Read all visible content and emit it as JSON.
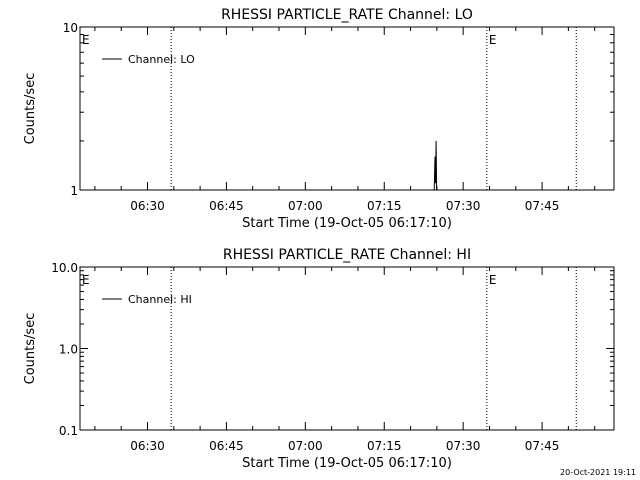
{
  "chart_data": [
    {
      "type": "line",
      "title": "RHESSI PARTICLE_RATE Channel: LO",
      "xlabel": "Start Time (19-Oct-05 06:17:10)",
      "ylabel": "Counts/sec",
      "y_scale": "log",
      "ylim": [
        1,
        10
      ],
      "y_ticks": [
        {
          "v": 1,
          "label": "1"
        },
        {
          "v": 10,
          "label": "10"
        }
      ],
      "x_range": [
        "06:17:10",
        "07:58:40"
      ],
      "x_ticks": [
        "06:30",
        "06:45",
        "07:00",
        "07:15",
        "07:30",
        "07:45"
      ],
      "x_tick_minutes": [
        30,
        45,
        60,
        75,
        90,
        105
      ],
      "x_range_minutes": [
        17.17,
        118.67
      ],
      "legend": {
        "label": "Channel: LO",
        "placement": "top-left"
      },
      "markers": [
        {
          "minutes": 17.17,
          "label": "E"
        },
        {
          "minutes": 34.5,
          "label": ""
        },
        {
          "minutes": 94.5,
          "label": "E"
        },
        {
          "minutes": 111.5,
          "label": ""
        }
      ],
      "series": [
        {
          "x_minutes": [
            84.5,
            84.65,
            84.75,
            84.85,
            84.95
          ],
          "values": [
            1,
            1.6,
            1.1,
            2.0,
            1
          ]
        }
      ]
    },
    {
      "type": "line",
      "title": "RHESSI PARTICLE_RATE Channel: HI",
      "xlabel": "Start Time (19-Oct-05 06:17:10)",
      "ylabel": "Counts/sec",
      "y_scale": "log",
      "ylim": [
        0.1,
        10
      ],
      "y_ticks": [
        {
          "v": 0.1,
          "label": "0.1"
        },
        {
          "v": 1,
          "label": "1.0"
        },
        {
          "v": 10,
          "label": "10.0"
        }
      ],
      "x_range": [
        "06:17:10",
        "07:58:40"
      ],
      "x_ticks": [
        "06:30",
        "06:45",
        "07:00",
        "07:15",
        "07:30",
        "07:45"
      ],
      "x_tick_minutes": [
        30,
        45,
        60,
        75,
        90,
        105
      ],
      "x_range_minutes": [
        17.17,
        118.67
      ],
      "legend": {
        "label": "Channel: HI",
        "placement": "top-left"
      },
      "markers": [
        {
          "minutes": 17.17,
          "label": "E"
        },
        {
          "minutes": 34.5,
          "label": ""
        },
        {
          "minutes": 94.5,
          "label": "E"
        },
        {
          "minutes": 111.5,
          "label": ""
        }
      ],
      "series": []
    }
  ],
  "footer": {
    "timestamp": "20-Oct-2021 19:11"
  }
}
